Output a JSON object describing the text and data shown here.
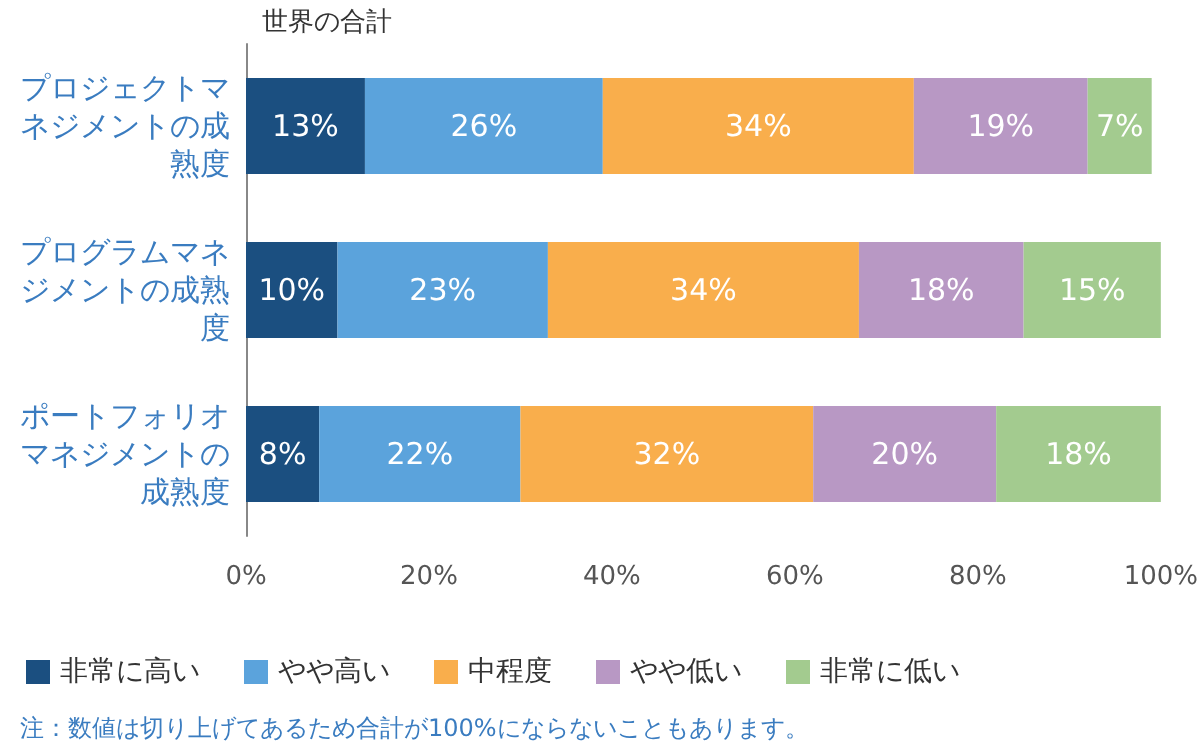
{
  "chart_data": {
    "type": "bar",
    "orientation": "horizontal",
    "stacked": true,
    "title": "世界の合計",
    "categories": [
      "プロジェクトマネジメントの成熟度",
      "プログラムマネジメントの成熟度",
      "ポートフォリオマネジメントの成熟度"
    ],
    "series": [
      {
        "name": "非常に高い",
        "color": "#1b4f80",
        "values": [
          13,
          10,
          8
        ],
        "value_labels": [
          "13%",
          "10%",
          "8%"
        ]
      },
      {
        "name": "やや高い",
        "color": "#5ba3dc",
        "values": [
          26,
          23,
          22
        ],
        "value_labels": [
          "26%",
          "23%",
          "22%"
        ]
      },
      {
        "name": "中程度",
        "color": "#f9ae4c",
        "values": [
          34,
          34,
          32
        ],
        "value_labels": [
          "34%",
          "34%",
          "32%"
        ]
      },
      {
        "name": "やや低い",
        "color": "#b898c4",
        "values": [
          19,
          18,
          20
        ],
        "value_labels": [
          "19%",
          "18%",
          "20%"
        ]
      },
      {
        "name": "非常に低い",
        "color": "#a3cb8f",
        "values": [
          7,
          15,
          18
        ],
        "value_labels": [
          "7%",
          "15%",
          "18%"
        ]
      }
    ],
    "xlim": [
      0,
      100
    ],
    "xticks": [
      {
        "value": 0,
        "label": "0%"
      },
      {
        "value": 20,
        "label": "20%"
      },
      {
        "value": 40,
        "label": "40%"
      },
      {
        "value": 60,
        "label": "60%"
      },
      {
        "value": 80,
        "label": "80%"
      },
      {
        "value": 100,
        "label": "100%"
      }
    ],
    "grid": false,
    "legend": "bottom",
    "annotations": [
      "注：数値は切り上げてあるため合計が100%にならないこともあります。"
    ]
  }
}
